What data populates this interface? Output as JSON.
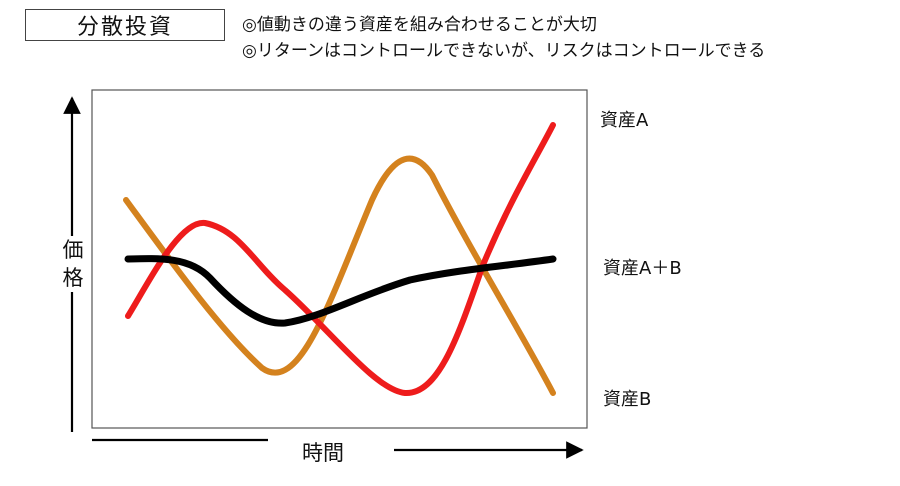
{
  "title": "分散投資",
  "notes": [
    "◎値動きの違う資産を組み合わせることが大切",
    "◎リターンはコントロールできないが、リスクはコントロールできる"
  ],
  "axis_labels": {
    "y": "価格",
    "x": "時間"
  },
  "series": [
    {
      "name": "資産A",
      "color": "#ee1c1c"
    },
    {
      "name": "資産A＋B",
      "color": "#000000"
    },
    {
      "name": "資産B",
      "color": "#d4821e"
    }
  ]
}
